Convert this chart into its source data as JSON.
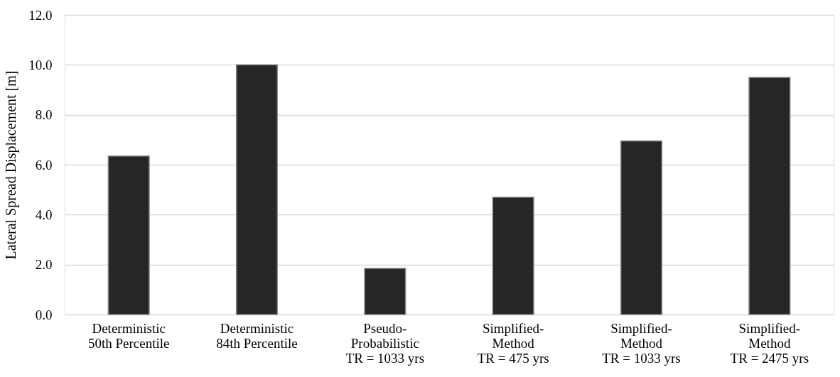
{
  "chart_data": {
    "type": "bar",
    "ylabel": "Lateral Spread Displacement [m]",
    "categories": [
      "Deterministic\n50th Percentile",
      "Deterministic\n84th Percentile",
      "Pseudo-\nProbabilistic\nTR = 1033 yrs",
      "Simplified-\nMethod\nTR = 475 yrs",
      "Simplified-\nMethod\nTR = 1033 yrs",
      "Simplified-\nMethod\nTR = 2475 yrs"
    ],
    "values": [
      6.35,
      10.0,
      1.85,
      4.7,
      6.95,
      9.5
    ],
    "color": "#262626",
    "ylim": [
      0,
      12
    ],
    "yticks": [
      {
        "value": 0,
        "label": "0.0"
      },
      {
        "value": 2,
        "label": "2.0"
      },
      {
        "value": 4,
        "label": "4.0"
      },
      {
        "value": 6,
        "label": "6.0"
      },
      {
        "value": 8,
        "label": "8.0"
      },
      {
        "value": 10,
        "label": "10.0"
      },
      {
        "value": 12,
        "label": "12.0"
      }
    ],
    "grid": "y"
  }
}
